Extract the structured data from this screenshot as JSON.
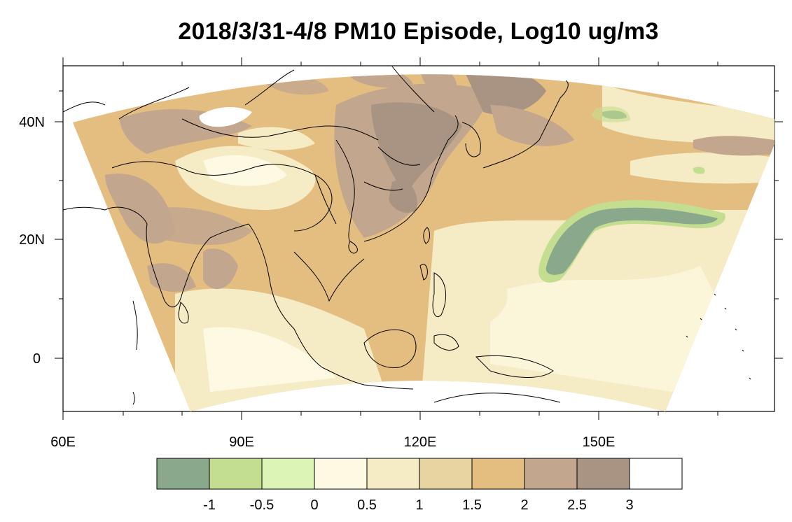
{
  "title": "2018/3/31-4/8 PM10 Episode, Log10 ug/m3",
  "axes": {
    "x_ticks": [
      "60E",
      "90E",
      "120E",
      "150E"
    ],
    "y_ticks": [
      "40N",
      "20N",
      "0"
    ]
  },
  "colorbar": {
    "colors": [
      "#8aa88b",
      "#c4de91",
      "#dcf4b5",
      "#fdf9e2",
      "#f5ebc4",
      "#e6d5a1",
      "#e3be80",
      "#c3a68e",
      "#a99483",
      "#ffffff"
    ],
    "labels": [
      "-1",
      "-0.5",
      "0",
      "0.5",
      "1",
      "1.5",
      "2",
      "2.5",
      "3"
    ]
  },
  "colors": {
    "land_outline": "#000000",
    "ocean_bg": "#ffffff"
  }
}
